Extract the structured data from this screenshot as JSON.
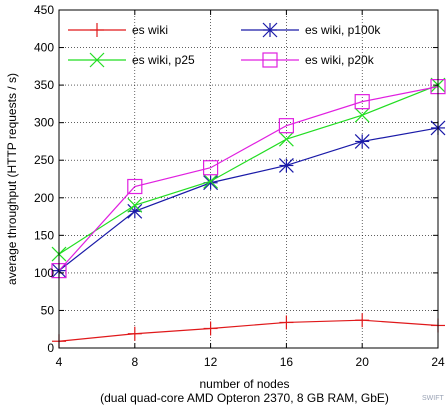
{
  "chart_data": {
    "type": "line",
    "xlabel": "number of nodes",
    "xlabel_line2": "(dual quad-core AMD Opteron 2370, 8 GB RAM, GbE)",
    "ylabel": "average throughput (HTTP requests / s)",
    "x": [
      4,
      8,
      12,
      16,
      20,
      24
    ],
    "xlim": [
      4,
      24
    ],
    "ylim": [
      0,
      450
    ],
    "yticks": [
      0,
      50,
      100,
      150,
      200,
      250,
      300,
      350,
      400,
      450
    ],
    "grid": true,
    "legend_position": "top",
    "series": [
      {
        "name": "es wiki",
        "values": [
          9,
          19,
          26,
          34,
          37,
          30
        ],
        "color": "#e0191b",
        "marker": "plus"
      },
      {
        "name": "es wiki, p100k",
        "values": [
          103,
          182,
          220,
          243,
          275,
          293
        ],
        "color": "#1a1aa8",
        "marker": "star"
      },
      {
        "name": "es wiki, p25",
        "values": [
          125,
          190,
          222,
          278,
          310,
          350
        ],
        "color": "#22dd22",
        "marker": "cross"
      },
      {
        "name": "es wiki, p20k",
        "values": [
          103,
          215,
          240,
          296,
          328,
          348
        ],
        "color": "#e020e0",
        "marker": "square"
      }
    ]
  },
  "watermark": "SWIFT"
}
